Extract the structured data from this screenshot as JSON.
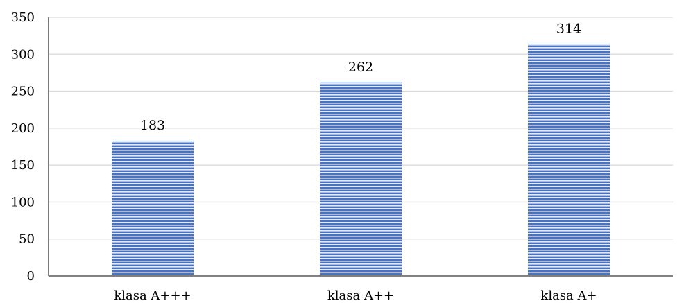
{
  "chart_data": {
    "type": "bar",
    "title": "",
    "xlabel": "",
    "ylabel": "",
    "categories": [
      "klasa A+++",
      "klasa A++",
      "klasa A+"
    ],
    "values": [
      183,
      262,
      314
    ],
    "data_labels": [
      "183",
      "262",
      "314"
    ],
    "ylim": [
      0,
      350
    ],
    "yticks": [
      0,
      50,
      100,
      150,
      200,
      250,
      300,
      350
    ],
    "ytick_labels": [
      "0",
      "50",
      "100",
      "150",
      "200",
      "250",
      "300",
      "350"
    ],
    "grid": true,
    "legend": "none",
    "colors": {
      "bar_fill": "#4a72c4",
      "bar_stripe": "#ffffff",
      "gridline": "#d9d9d9",
      "axis": "#595959"
    }
  }
}
